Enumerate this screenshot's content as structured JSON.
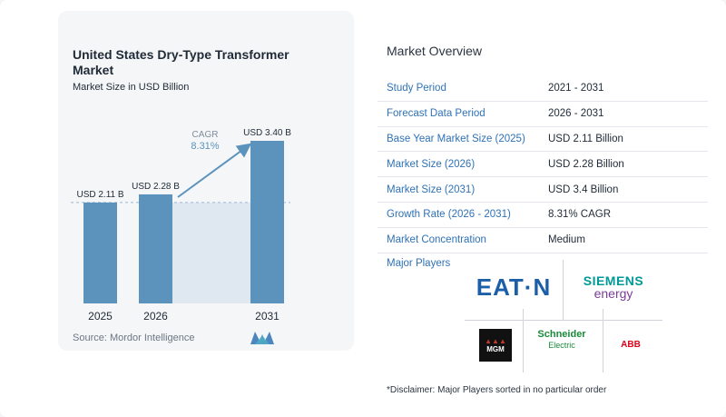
{
  "chart_data": {
    "type": "bar",
    "title": "United States Dry-Type Transformer Market",
    "subtitle": "Market Size in USD Billion",
    "categories": [
      "2025",
      "2026",
      "2031"
    ],
    "values": [
      2.11,
      2.28,
      3.4
    ],
    "value_labels": [
      "USD 2.11 B",
      "USD 2.28 B",
      "USD 3.40 B"
    ],
    "cagr_label": "CAGR",
    "cagr_value": "8.31%",
    "bar_color": "#5b93bd",
    "shade_color": "#dfe8f1",
    "ylim": [
      0,
      3.6
    ],
    "source": "Source:  Mordor Intelligence"
  },
  "overview": {
    "title": "Market Overview",
    "rows": [
      {
        "key": "Study Period",
        "value": "2021 - 2031"
      },
      {
        "key": "Forecast Data Period",
        "value": "2026 - 2031"
      },
      {
        "key": "Base Year Market Size (2025)",
        "value": "USD 2.11 Billion"
      },
      {
        "key": "Market Size (2026)",
        "value": "USD 2.28 Billion"
      },
      {
        "key": "Market Size (2031)",
        "value": "USD 3.4 Billion"
      },
      {
        "key": "Growth Rate (2026 - 2031)",
        "value": "8.31% CAGR"
      },
      {
        "key": "Market Concentration",
        "value": "Medium"
      }
    ]
  },
  "players": {
    "title": "Major Players",
    "eaton": "EAT·N",
    "siemens_1": "SIEMENS",
    "siemens_2": "energy",
    "mgm": "MGM",
    "schneider_1": "Schneider",
    "schneider_2": "Electric",
    "abb": "ABB"
  },
  "disclaimer": "*Disclaimer: Major Players sorted in no particular order"
}
